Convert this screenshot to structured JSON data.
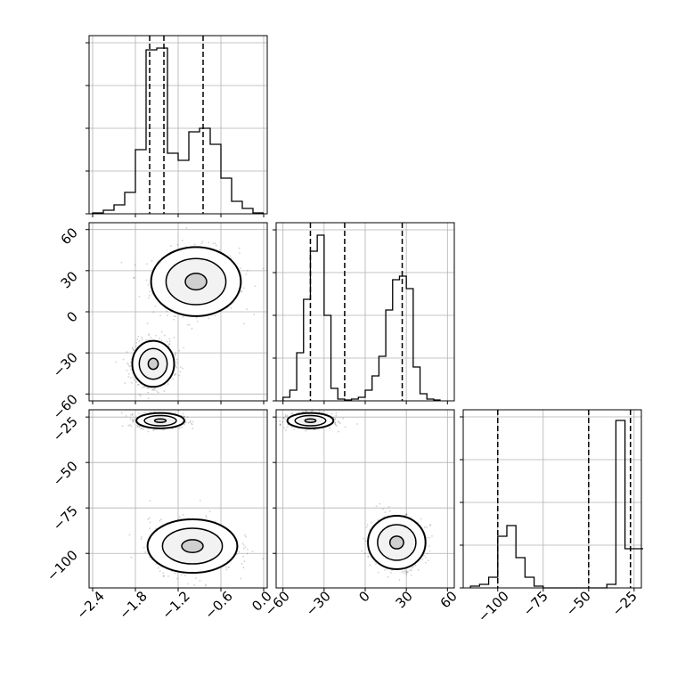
{
  "chart_data": [
    {
      "type": "histogram",
      "panel": "param1-marginal",
      "xlim": [
        -2.45,
        0.05
      ],
      "bins": [
        -2.4,
        -2.25,
        -2.1,
        -1.95,
        -1.8,
        -1.65,
        -1.5,
        -1.35,
        -1.2,
        -1.05,
        -0.9,
        -0.75,
        -0.6,
        -0.45,
        -0.3,
        -0.15,
        0.0
      ],
      "counts": [
        0.005,
        0.02,
        0.05,
        0.12,
        0.36,
        0.92,
        0.93,
        0.34,
        0.3,
        0.46,
        0.48,
        0.39,
        0.2,
        0.07,
        0.03,
        0.005
      ],
      "quantiles": [
        -1.6,
        -1.4,
        -0.85
      ],
      "grid": true
    },
    {
      "type": "histogram",
      "panel": "param2-marginal",
      "xlim": [
        -65,
        65
      ],
      "bins": [
        -60,
        -55,
        -50,
        -45,
        -40,
        -35,
        -30,
        -25,
        -20,
        -15,
        -10,
        -5,
        0,
        5,
        10,
        15,
        20,
        25,
        30,
        35,
        40,
        45,
        50,
        55
      ],
      "counts": [
        0.02,
        0.06,
        0.27,
        0.57,
        0.84,
        0.93,
        0.48,
        0.07,
        0.01,
        0.005,
        0.01,
        0.02,
        0.06,
        0.14,
        0.25,
        0.51,
        0.68,
        0.7,
        0.63,
        0.19,
        0.04,
        0.01,
        0.005
      ],
      "quantiles": [
        -40,
        -15,
        27
      ],
      "grid": true
    },
    {
      "type": "histogram",
      "panel": "param3-marginal",
      "xlim": [
        -119,
        -21
      ],
      "bins": [
        -115,
        -110,
        -105,
        -100,
        -95,
        -90,
        -85,
        -80,
        -75,
        -70,
        -65,
        -60,
        -55,
        -50,
        -45,
        -40,
        -35,
        -30,
        -25,
        -20
      ],
      "counts": [
        0.01,
        0.02,
        0.06,
        0.29,
        0.35,
        0.17,
        0.06,
        0.01,
        0,
        0,
        0,
        0,
        0,
        0,
        0,
        0.02,
        0.94,
        0.22,
        0.22
      ],
      "quantiles": [
        -100,
        -50,
        -27
      ],
      "grid": true
    },
    {
      "type": "scatter",
      "panel": "param2-vs-param1",
      "xlim": [
        -2.45,
        0.05
      ],
      "ylim": [
        -65,
        65
      ],
      "yticks": [
        "60",
        "30",
        "0",
        "−30",
        "−60"
      ],
      "clusters": [
        {
          "x": -0.95,
          "y": 22,
          "sx": 0.3,
          "sy": 12
        },
        {
          "x": -1.55,
          "y": -38,
          "sx": 0.14,
          "sy": 8
        }
      ],
      "grid": true
    },
    {
      "type": "scatter",
      "panel": "param3-vs-param1",
      "xlim": [
        -2.45,
        0.05
      ],
      "ylim": [
        -119,
        -21
      ],
      "yticks": [
        "−25",
        "−50",
        "−75",
        "−100"
      ],
      "xticks": [
        "−2.4",
        "−1.8",
        "−1.2",
        "−0.6",
        "0.0"
      ],
      "clusters": [
        {
          "x": -1.45,
          "y": -27,
          "sx": 0.16,
          "sy": 2
        },
        {
          "x": -1.0,
          "y": -96,
          "sx": 0.3,
          "sy": 7
        }
      ],
      "grid": true
    },
    {
      "type": "scatter",
      "panel": "param3-vs-param2",
      "xlim": [
        -65,
        65
      ],
      "ylim": [
        -119,
        -21
      ],
      "xticks": [
        "−60",
        "−30",
        "0",
        "30",
        "60"
      ],
      "clusters": [
        {
          "x": -40,
          "y": -27,
          "sx": 8,
          "sy": 2
        },
        {
          "x": 23,
          "y": -94,
          "sx": 10,
          "sy": 7
        }
      ],
      "grid": true
    },
    {
      "type": "axis",
      "panel": "param3-axis",
      "xticks": [
        "−100",
        "−75",
        "−50",
        "−25"
      ]
    }
  ]
}
